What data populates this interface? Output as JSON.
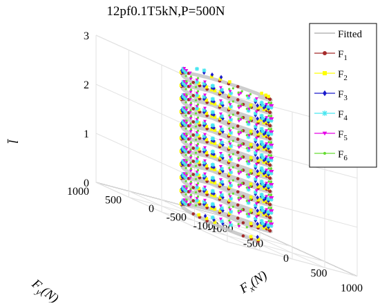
{
  "chart_data": {
    "type": "line3d",
    "title": "12pf0.1T5kN,P=500N",
    "xlabel": "F",
    "xlabel_sub": "x",
    "xlabel_unit": "(N)",
    "ylabel": "F",
    "ylabel_sub": "y",
    "ylabel_unit": "(N)",
    "zlabel": "l̄",
    "x_ticks": [
      "-1000",
      "-500",
      "0",
      "500",
      "1000"
    ],
    "y_ticks": [
      "-1000",
      "-500",
      "0",
      "500",
      "1000"
    ],
    "z_ticks": [
      "0",
      "1",
      "2",
      "3"
    ],
    "xlim": [
      -1000,
      1000
    ],
    "ylim": [
      -1000,
      1000
    ],
    "zlim": [
      0,
      3
    ],
    "grid": true,
    "legend_position": "top-right-outside",
    "helix": {
      "radius": 480,
      "turns": 11,
      "z_start": 0.05,
      "z_end": 3.0
    },
    "series": [
      {
        "name": "Fitted",
        "label_main": "Fitted",
        "label_sub": "",
        "color": "#c8c8c8",
        "marker": "line",
        "phase_deg": 0
      },
      {
        "name": "F1",
        "label_main": "F",
        "label_sub": "1",
        "color": "#a52a2a",
        "marker": "circle",
        "phase_deg": 0
      },
      {
        "name": "F2",
        "label_main": "F",
        "label_sub": "2",
        "color": "#ffff00",
        "marker": "square",
        "phase_deg": 60
      },
      {
        "name": "F3",
        "label_main": "F",
        "label_sub": "3",
        "color": "#1a1acc",
        "marker": "diamond",
        "phase_deg": 120
      },
      {
        "name": "F4",
        "label_main": "F",
        "label_sub": "4",
        "color": "#48e6f0",
        "marker": "star",
        "phase_deg": 180
      },
      {
        "name": "F5",
        "label_main": "F",
        "label_sub": "5",
        "color": "#e600e6",
        "marker": "triangle-down",
        "phase_deg": 240
      },
      {
        "name": "F6",
        "label_main": "F",
        "label_sub": "6",
        "color": "#66dd33",
        "marker": "dot",
        "phase_deg": 300
      }
    ]
  }
}
